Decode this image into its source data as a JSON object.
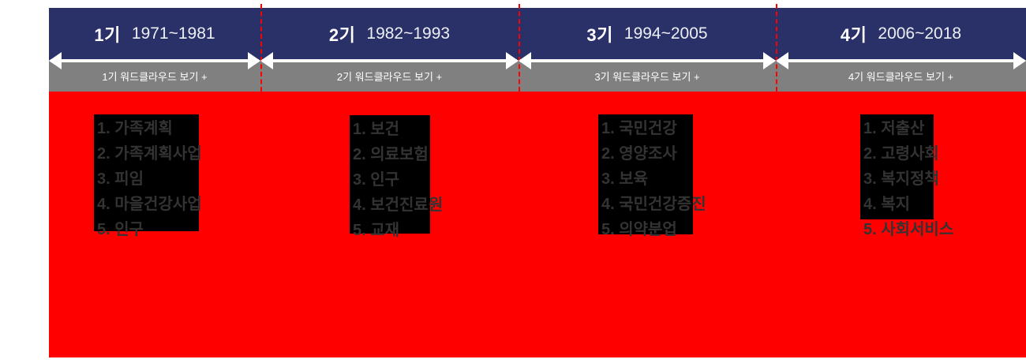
{
  "sections": [
    {
      "label": "1기",
      "years": "1971~1981",
      "button": "1기 워드클라우드 보기 +",
      "keywords": [
        "1. 가족계획",
        "2. 가족계획사업",
        "3. 피임",
        "4. 마을건강사업",
        "5. 인구"
      ]
    },
    {
      "label": "2기",
      "years": "1982~1993",
      "button": "2기 워드클라우드 보기 +",
      "keywords": [
        "1. 보건",
        "2. 의료보험",
        "3. 인구",
        "4. 보건진료원",
        "5. 교재"
      ]
    },
    {
      "label": "3기",
      "years": "1994~2005",
      "button": "3기 워드클라우드 보기 +",
      "keywords": [
        "1. 국민건강",
        "2. 영양조사",
        "3. 보육",
        "4. 국민건강증진",
        "5. 의약분업"
      ]
    },
    {
      "label": "4기",
      "years": "2006~2018",
      "button": "4기 워드클라우드 보기 +",
      "keywords": [
        "1. 저출산",
        "2. 고령사회",
        "3. 복지정책",
        "4. 복지",
        "5. 사회서비스"
      ]
    }
  ],
  "colors": {
    "header_navy": "#2a3169",
    "button_gray": "#808080",
    "panel_red": "#ff0000",
    "keyword_box_black": "#000000",
    "keyword_text_gray": "#333333",
    "divider_dash_red": "#ff0000",
    "arrow_white": "#ffffff"
  }
}
